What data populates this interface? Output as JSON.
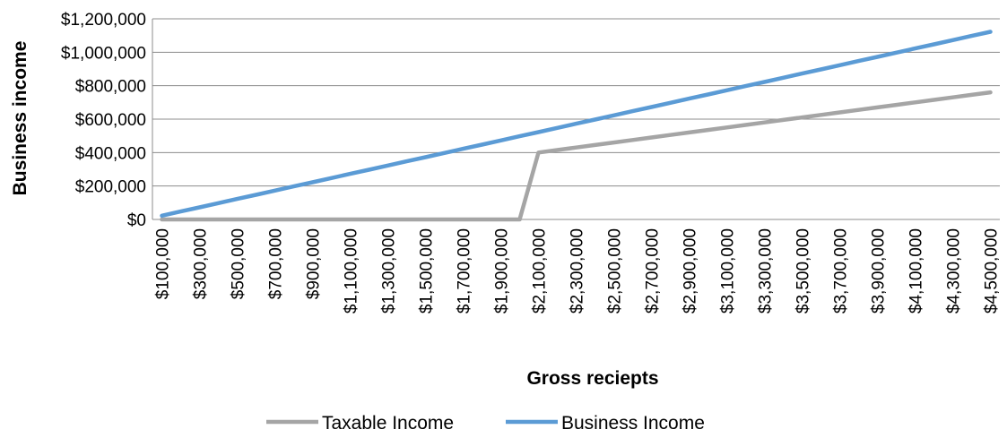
{
  "chart_data": {
    "type": "line",
    "xlabel": "Gross reciepts",
    "ylabel": "Business income",
    "ylim": [
      0,
      1200000
    ],
    "y_ticks": [
      "$0",
      "$200,000",
      "$400,000",
      "$600,000",
      "$800,000",
      "$1,000,000",
      "$1,200,000"
    ],
    "y_tick_values": [
      0,
      200000,
      400000,
      600000,
      800000,
      1000000,
      1200000
    ],
    "x": [
      100000,
      200000,
      300000,
      400000,
      500000,
      600000,
      700000,
      800000,
      900000,
      1000000,
      1100000,
      1200000,
      1300000,
      1400000,
      1500000,
      1600000,
      1700000,
      1800000,
      1900000,
      2000000,
      2100000,
      2200000,
      2300000,
      2400000,
      2500000,
      2600000,
      2700000,
      2800000,
      2900000,
      3000000,
      3100000,
      3200000,
      3300000,
      3400000,
      3500000,
      3600000,
      3700000,
      3800000,
      3900000,
      4000000,
      4100000,
      4200000,
      4300000,
      4400000,
      4500000
    ],
    "x_tick_labels": [
      "$100,000",
      "$300,000",
      "$500,000",
      "$700,000",
      "$900,000",
      "$1,100,000",
      "$1,300,000",
      "$1,500,000",
      "$1,700,000",
      "$1,900,000",
      "$2,100,000",
      "$2,300,000",
      "$2,500,000",
      "$2,700,000",
      "$2,900,000",
      "$3,100,000",
      "$3,300,000",
      "$3,500,000",
      "$3,700,000",
      "$3,900,000",
      "$4,100,000",
      "$4,300,000",
      "$4,500,000"
    ],
    "series": [
      {
        "name": "Taxable Income",
        "color": "#a5a5a5",
        "values": [
          0,
          0,
          0,
          0,
          0,
          0,
          0,
          0,
          0,
          0,
          0,
          0,
          0,
          0,
          0,
          0,
          0,
          0,
          0,
          0,
          400000,
          415000,
          430000,
          445000,
          460000,
          475000,
          490000,
          505000,
          520000,
          535000,
          550000,
          565000,
          580000,
          595000,
          610000,
          625000,
          640000,
          655000,
          670000,
          685000,
          700000,
          715000,
          730000,
          745000,
          760000
        ]
      },
      {
        "name": "Business Income",
        "color": "#5b9bd5",
        "values": [
          22500,
          47500,
          72500,
          97500,
          122500,
          147500,
          172500,
          197500,
          222500,
          247500,
          272500,
          297500,
          322500,
          347500,
          372500,
          397500,
          422500,
          447500,
          472500,
          497500,
          522500,
          547500,
          572500,
          597500,
          622500,
          647500,
          672500,
          697500,
          722500,
          747500,
          772500,
          797500,
          822500,
          847500,
          872500,
          897500,
          922500,
          947500,
          972500,
          997500,
          1022500,
          1047500,
          1072500,
          1097500,
          1122500
        ]
      }
    ],
    "grid": true,
    "legend_position": "bottom"
  }
}
